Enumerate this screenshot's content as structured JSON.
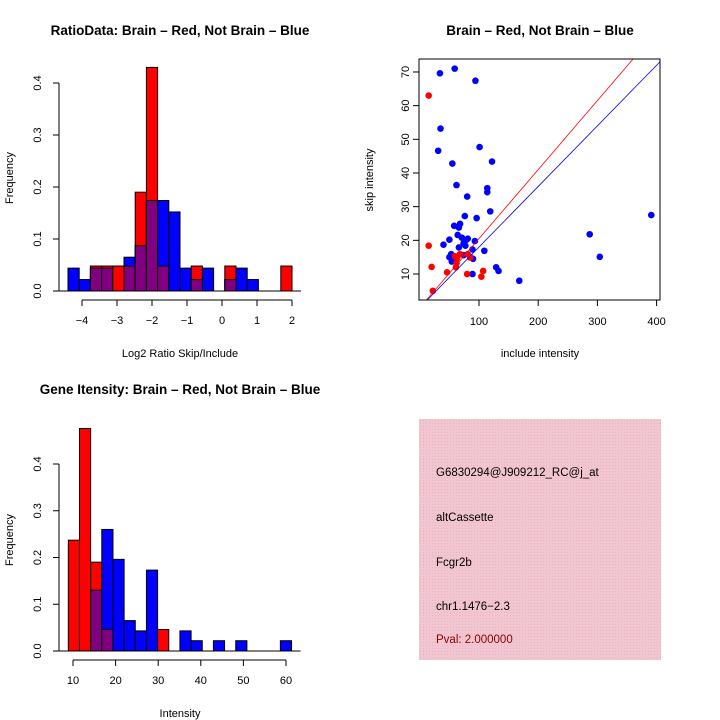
{
  "colors": {
    "brain": "#ff0000",
    "not_brain": "#0000ff",
    "overlap": "#800080",
    "panel_bg": "#f2c6d0",
    "pval": "#8b0000"
  },
  "chart_data": [
    {
      "type": "bar",
      "title": "RatioData: Brain – Red, Not Brain – Blue",
      "xlabel": "Log2 Ratio Skip/Include",
      "ylabel": "Frequency",
      "xticks": [
        -4,
        -3,
        -2,
        -1,
        0,
        1,
        2
      ],
      "xtick_labels": [
        "−4",
        "−3",
        "−2",
        "−1",
        "0",
        "1",
        "2"
      ],
      "yticks": [
        0.0,
        0.1,
        0.2,
        0.3,
        0.4
      ],
      "ytick_labels": [
        "0.0",
        "0.1",
        "0.2",
        "0.3",
        "0.4"
      ],
      "bin_start": -4.4,
      "bin_width": 0.32,
      "series": [
        {
          "name": "Not Brain",
          "values": [
            0.044,
            0.022,
            0.044,
            0.044,
            0,
            0.065,
            0.087,
            0.174,
            0.174,
            0.152,
            0.044,
            0.022,
            0.044,
            0,
            0.022,
            0.044,
            0.022,
            0,
            0,
            0
          ]
        },
        {
          "name": "Brain",
          "values": [
            0,
            0,
            0.048,
            0.048,
            0.048,
            0.048,
            0.19,
            0.43,
            0.048,
            0,
            0,
            0.048,
            0,
            0,
            0.048,
            0,
            0,
            0,
            0,
            0.048
          ]
        }
      ]
    },
    {
      "type": "scatter",
      "title": "Brain – Red, Not Brain – Blue",
      "xlabel": "include intensity",
      "ylabel": "skip intensity",
      "xticks": [
        100,
        200,
        300,
        400
      ],
      "yticks": [
        10,
        20,
        30,
        40,
        50,
        60,
        70
      ],
      "xlim": [
        0,
        406
      ],
      "ylim": [
        2.3,
        73.8
      ],
      "series": [
        {
          "name": "Not Brain",
          "points": [
            [
              34,
              69.6
            ],
            [
              59,
              71
            ],
            [
              94,
              67.4
            ],
            [
              35,
              53.2
            ],
            [
              31,
              46.6
            ],
            [
              101,
              47.7
            ],
            [
              55,
              42.8
            ],
            [
              122,
              43.4
            ],
            [
              62,
              36.4
            ],
            [
              114,
              35.5
            ],
            [
              114,
              34.3
            ],
            [
              80,
              33
            ],
            [
              119,
              28.6
            ],
            [
              76,
              27.2
            ],
            [
              96,
              26.6
            ],
            [
              68,
              24.9
            ],
            [
              58,
              24.3
            ],
            [
              66,
              23.8
            ],
            [
              40,
              18.7
            ],
            [
              50,
              20.2
            ],
            [
              64,
              21.6
            ],
            [
              71,
              20.8
            ],
            [
              78,
              20.1
            ],
            [
              93,
              19.8
            ],
            [
              81,
              20.5
            ],
            [
              74,
              19.1
            ],
            [
              77,
              18.4
            ],
            [
              66,
              17.9
            ],
            [
              89,
              17.3
            ],
            [
              109,
              16.9
            ],
            [
              90,
              14.5
            ],
            [
              50,
              15
            ],
            [
              53,
              15.9
            ],
            [
              54,
              13.7
            ],
            [
              74,
              15.6
            ],
            [
              85,
              15.1
            ],
            [
              89,
              10
            ],
            [
              129,
              12
            ],
            [
              133,
              10.9
            ],
            [
              168,
              8
            ],
            [
              287,
              21.8
            ],
            [
              304,
              15.1
            ],
            [
              391,
              27.5
            ]
          ],
          "fit_slope": 0.18
        },
        {
          "name": "Brain",
          "points": [
            [
              15,
              63
            ],
            [
              15,
              18.4
            ],
            [
              20,
              12.1
            ],
            [
              22,
              5
            ],
            [
              46,
              10.5
            ],
            [
              61,
              12
            ],
            [
              62,
              13.2
            ],
            [
              63,
              14.7
            ],
            [
              68,
              15.9
            ],
            [
              59,
              15.3
            ],
            [
              81,
              15.9
            ],
            [
              85,
              14.9
            ],
            [
              80,
              10
            ],
            [
              104,
              9.2
            ],
            [
              107,
              10.9
            ]
          ],
          "fit_slope": 0.205
        }
      ]
    },
    {
      "type": "bar",
      "title": "Gene Itensity: Brain – Red, Not Brain – Blue",
      "xlabel": "Intensity",
      "ylabel": "Frequency",
      "xticks": [
        10,
        20,
        30,
        40,
        50,
        60
      ],
      "xtick_labels": [
        "10",
        "20",
        "30",
        "40",
        "50",
        "60"
      ],
      "yticks": [
        0.0,
        0.1,
        0.2,
        0.3,
        0.4
      ],
      "ytick_labels": [
        "0.0",
        "0.1",
        "0.2",
        "0.3",
        "0.4"
      ],
      "bin_start": 8.9,
      "bin_width": 2.62,
      "series": [
        {
          "name": "Not Brain",
          "values": [
            0,
            0,
            0.13,
            0.26,
            0.196,
            0.065,
            0.043,
            0.173,
            0,
            0,
            0.043,
            0.022,
            0,
            0.022,
            0,
            0.022,
            0,
            0,
            0,
            0.022
          ]
        },
        {
          "name": "Brain",
          "values": [
            0.237,
            0.476,
            0.19,
            0.046,
            0,
            0,
            0,
            0,
            0.046,
            0,
            0,
            0,
            0,
            0,
            0,
            0,
            0,
            0,
            0,
            0
          ]
        }
      ]
    }
  ],
  "info_panel": {
    "probe_id": "G6830294@J909212_RC@j_at",
    "event_type": "altCassette",
    "gene": "Fcgr2b",
    "location": "chr1.1476−2.3",
    "pval": "Pval: 2.000000"
  }
}
